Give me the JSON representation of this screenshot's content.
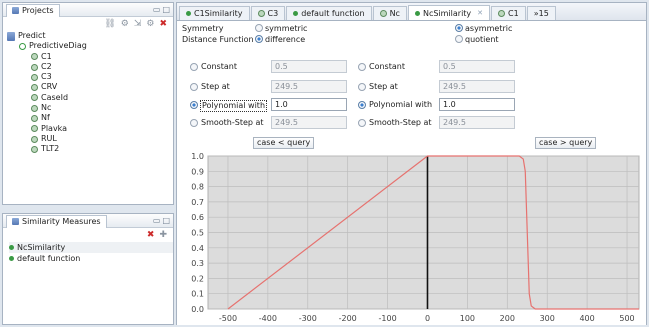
{
  "projects_panel": {
    "title": "Projects",
    "toolbar_icons": [
      "link-icon",
      "new-config-icon",
      "import-icon",
      "export-icon",
      "delete-icon"
    ],
    "root": "Predict",
    "config": "PredictiveDiag",
    "items": [
      "C1",
      "C2",
      "C3",
      "CRV",
      "CaseId",
      "Nc",
      "Nf",
      "Plavka",
      "RUL",
      "TLT2"
    ]
  },
  "similarity_panel": {
    "title": "Similarity Measures",
    "items": [
      "NcSimilarity",
      "default function"
    ]
  },
  "editor": {
    "tabs": [
      {
        "label": "C1Similarity",
        "icon": "green-dot-icon"
      },
      {
        "label": "C3",
        "icon": "attribute-icon"
      },
      {
        "label": "default function",
        "icon": "green-dot-icon"
      },
      {
        "label": "Nc",
        "icon": "attribute-icon"
      },
      {
        "label": "NcSimilarity",
        "icon": "green-dot-icon",
        "active": true
      },
      {
        "label": "C1",
        "icon": "attribute-icon"
      },
      {
        "label": "»15",
        "icon": ""
      }
    ],
    "symmetry_label": "Symmetry",
    "symmetric_label": "symmetric",
    "asymmetric_label": "asymmetric",
    "distance_label": "Distance Function",
    "difference_label": "difference",
    "quotient_label": "quotient",
    "left": {
      "constant": {
        "label": "Constant",
        "value": "0.5"
      },
      "step": {
        "label": "Step at",
        "value": "249.5"
      },
      "poly": {
        "label": "Polynomial with",
        "value": "1.0"
      },
      "smooth": {
        "label": "Smooth-Step at",
        "value": "249.5"
      },
      "button": "case < query"
    },
    "right": {
      "constant": {
        "label": "Constant",
        "value": "0.5"
      },
      "step": {
        "label": "Step at",
        "value": "249.5"
      },
      "poly": {
        "label": "Polynomial with",
        "value": "1.0"
      },
      "smooth": {
        "label": "Smooth-Step at",
        "value": "249.5"
      },
      "button": "case > query"
    }
  },
  "chart_data": {
    "type": "line",
    "xlabel": "",
    "ylabel": "",
    "xlim": [
      -550,
      530
    ],
    "ylim": [
      0,
      1.0
    ],
    "xticks": [
      -500,
      -400,
      -300,
      -200,
      -100,
      0,
      100,
      200,
      300,
      400,
      500
    ],
    "yticks": [
      "0.0",
      "0.1",
      "0.2",
      "0.3",
      "0.4",
      "0.5",
      "0.6",
      "0.7",
      "0.8",
      "0.9",
      "1.0"
    ],
    "grid": true,
    "zero_line_x": 0,
    "series": [
      {
        "color": "#e6726f",
        "x": [
          -500,
          0,
          230,
          240,
          245,
          250,
          255,
          260,
          270,
          530
        ],
        "y": [
          0,
          1.0,
          1.0,
          0.98,
          0.9,
          0.5,
          0.1,
          0.02,
          0.0,
          0.0
        ]
      }
    ]
  }
}
